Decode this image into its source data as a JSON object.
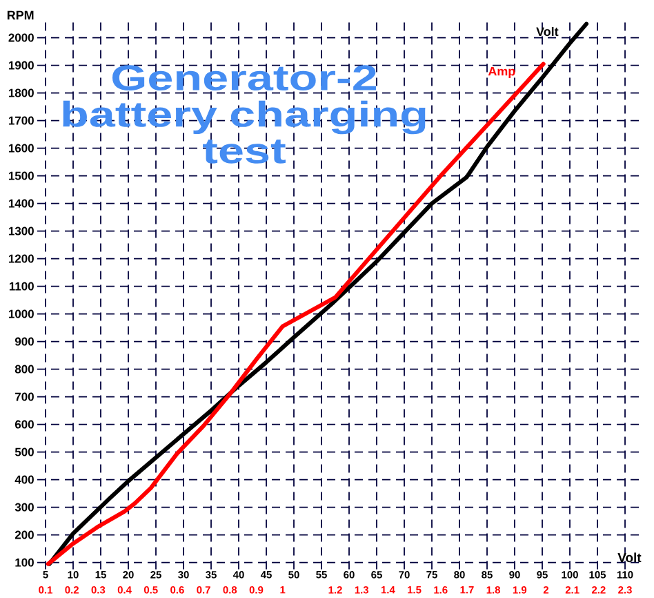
{
  "chart_data": {
    "type": "line",
    "title": "Generator-2 battery charging test",
    "xlabel": "Volt",
    "ylabel": "RPM",
    "xlim": [
      3.5,
      113.5
    ],
    "xticks": [
      5,
      10,
      15,
      20,
      25,
      30,
      35,
      40,
      45,
      50,
      55,
      60,
      65,
      70,
      75,
      80,
      85,
      90,
      95,
      100,
      105,
      110
    ],
    "x2lim": [
      0.1,
      2.3
    ],
    "x2ticks": [
      0.1,
      0.2,
      0.3,
      0.4,
      0.5,
      0.6,
      0.7,
      0.8,
      0.9,
      1,
      1.2,
      1.3,
      1.4,
      1.5,
      1.6,
      1.7,
      1.8,
      1.9,
      2,
      2.1,
      2.2,
      2.3
    ],
    "ylim": [
      75,
      2075
    ],
    "yticks": [
      100,
      200,
      300,
      400,
      500,
      600,
      700,
      800,
      900,
      1000,
      1100,
      1200,
      1300,
      1400,
      1500,
      1600,
      1700,
      1800,
      1900,
      2000
    ],
    "grid": true,
    "marker": "none",
    "line_style": "solid",
    "series": [
      {
        "name": "Volt",
        "color": "#000000",
        "x": [
          5.7,
          10,
          16.5,
          20,
          25,
          30,
          35,
          40,
          45,
          50,
          56.8,
          65,
          70,
          75,
          81.3,
          85,
          90,
          95,
          100,
          103
        ],
        "values": [
          95,
          205,
          330,
          395,
          480,
          565,
          650,
          740,
          825,
          915,
          1035,
          1190,
          1295,
          1400,
          1495,
          1605,
          1735,
          1855,
          1980,
          2050
        ]
      },
      {
        "name": "Amp",
        "color": "#ff0000",
        "axis": "x2",
        "x": [
          0.11,
          0.2,
          0.3,
          0.4,
          0.44,
          0.5,
          0.6,
          0.7,
          0.8,
          0.9,
          1,
          1.2,
          1.6,
          1.99
        ],
        "values": [
          95,
          165,
          230,
          285,
          315,
          370,
          495,
          595,
          710,
          835,
          955,
          1060,
          1500,
          1905
        ]
      }
    ]
  }
}
